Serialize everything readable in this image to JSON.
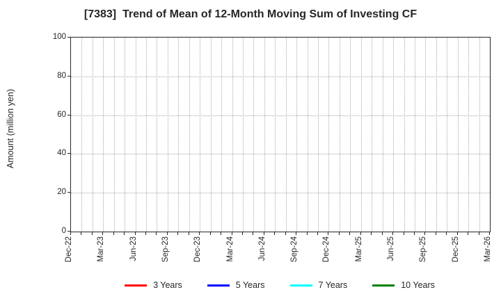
{
  "chart_data": {
    "type": "line",
    "title": "[7383]  Trend of Mean of 12-Month Moving Sum of Investing CF",
    "ylabel": "Amount (million yen)",
    "ylim": [
      0,
      100
    ],
    "yticks": [
      0,
      20,
      40,
      60,
      80,
      100
    ],
    "x_tick_labels": [
      "Dec-22",
      "Mar-23",
      "Jun-23",
      "Sep-23",
      "Dec-23",
      "Mar-24",
      "Jun-24",
      "Sep-24",
      "Dec-24",
      "Mar-25",
      "Jun-25",
      "Sep-25",
      "Dec-25",
      "Mar-26"
    ],
    "n_months": 40,
    "x_label_every_n_months": 3,
    "grid": "on",
    "grid_style": "dotted",
    "grid_color": "#a8a8a8",
    "axis_color": "#262626",
    "text_color": "#262626",
    "legend_position": "bottom-center",
    "series": [
      {
        "name": "3 Years",
        "color": "#ff0000",
        "values": []
      },
      {
        "name": "5 Years",
        "color": "#0000ff",
        "values": []
      },
      {
        "name": "7 Years",
        "color": "#00ffff",
        "values": []
      },
      {
        "name": "10 Years",
        "color": "#008000",
        "values": []
      }
    ]
  }
}
